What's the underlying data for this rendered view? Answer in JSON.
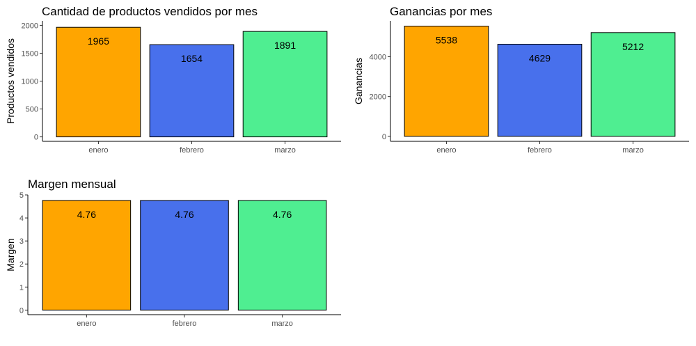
{
  "colors": {
    "enero": "#FFA500",
    "febrero": "#4870EC",
    "marzo": "#4FEE91"
  },
  "chart_data": [
    {
      "type": "bar",
      "title": "Cantidad de productos vendidos por mes",
      "xlabel": "",
      "ylabel": "Productos vendidos",
      "categories": [
        "enero",
        "febrero",
        "marzo"
      ],
      "values": [
        1965,
        1654,
        1891
      ],
      "value_labels": [
        "1965",
        "1654",
        "1891"
      ],
      "yticks": [
        0,
        500,
        1000,
        1500,
        2000
      ],
      "ylim": [
        -80,
        2080
      ]
    },
    {
      "type": "bar",
      "title": "Ganancias por mes",
      "xlabel": "",
      "ylabel": "Ganancias",
      "categories": [
        "enero",
        "febrero",
        "marzo"
      ],
      "values": [
        5538,
        4629,
        5212
      ],
      "value_labels": [
        "5538",
        "4629",
        "5212"
      ],
      "yticks": [
        0,
        2000,
        4000
      ],
      "ylim": [
        -250,
        5800
      ]
    },
    {
      "type": "bar",
      "title": "Margen mensual",
      "xlabel": "",
      "ylabel": "Margen",
      "categories": [
        "enero",
        "febrero",
        "marzo"
      ],
      "values": [
        4.76,
        4.76,
        4.76
      ],
      "value_labels": [
        "4.76",
        "4.76",
        "4.76"
      ],
      "yticks": [
        0,
        1,
        2,
        3,
        4,
        5
      ],
      "ylim": [
        -0.2,
        5.0
      ]
    }
  ]
}
